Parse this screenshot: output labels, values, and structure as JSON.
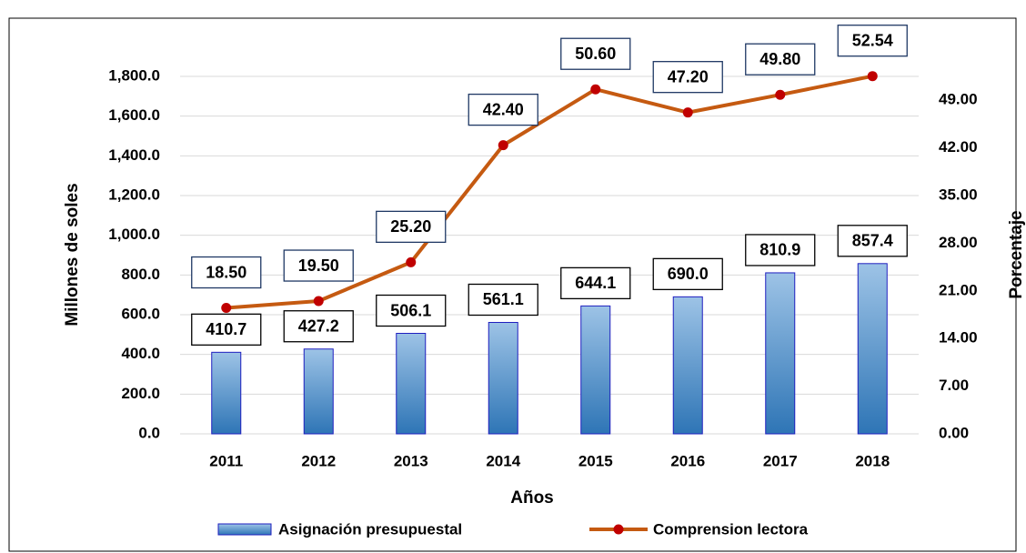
{
  "chart_data": {
    "type": "bar-line",
    "categories": [
      "2011",
      "2012",
      "2013",
      "2014",
      "2015",
      "2016",
      "2017",
      "2018"
    ],
    "x_label": "Años",
    "y_label": "Millones de soles",
    "y2_label": "Porcentaje",
    "ylim": [
      0,
      1800
    ],
    "yticks": [
      {
        "value": 0,
        "label": "0.0"
      },
      {
        "value": 200,
        "label": "200.0"
      },
      {
        "value": 400,
        "label": "400.0"
      },
      {
        "value": 600,
        "label": "600.0"
      },
      {
        "value": 800,
        "label": "800.0"
      },
      {
        "value": 1000,
        "label": "1,000.0"
      },
      {
        "value": 1200,
        "label": "1,200.0"
      },
      {
        "value": 1400,
        "label": "1,400.0"
      },
      {
        "value": 1600,
        "label": "1,600.0"
      },
      {
        "value": 1800,
        "label": "1,800.0"
      }
    ],
    "y2lim": [
      0,
      52.5
    ],
    "y2ticks": [
      {
        "value": 0,
        "label": "0.00"
      },
      {
        "value": 7,
        "label": "7.00"
      },
      {
        "value": 14,
        "label": "14.00"
      },
      {
        "value": 21,
        "label": "21.00"
      },
      {
        "value": 28,
        "label": "28.00"
      },
      {
        "value": 35,
        "label": "35.00"
      },
      {
        "value": 42,
        "label": "42.00"
      },
      {
        "value": 49,
        "label": "49.00"
      }
    ],
    "grid": true,
    "legend": "bottom",
    "series": [
      {
        "name": "Asignación presupuestal",
        "type": "bar",
        "color": "#5b9bd5",
        "values": [
          410.7,
          427.2,
          506.1,
          561.1,
          644.1,
          690.0,
          810.9,
          857.4
        ],
        "value_labels": [
          "410.7",
          "427.2",
          "506.1",
          "561.1",
          "644.1",
          "690.0",
          "810.9",
          "857.4"
        ]
      },
      {
        "name": "Comprension lectora",
        "type": "line",
        "axis": "y2",
        "color": "#c55a11",
        "marker_color": "#c00000",
        "values": [
          18.5,
          19.5,
          25.2,
          42.4,
          50.6,
          47.2,
          49.8,
          52.54
        ],
        "value_labels": [
          "18.50",
          "19.50",
          "25.20",
          "42.40",
          "50.60",
          "47.20",
          "49.80",
          "52.54"
        ]
      }
    ]
  }
}
